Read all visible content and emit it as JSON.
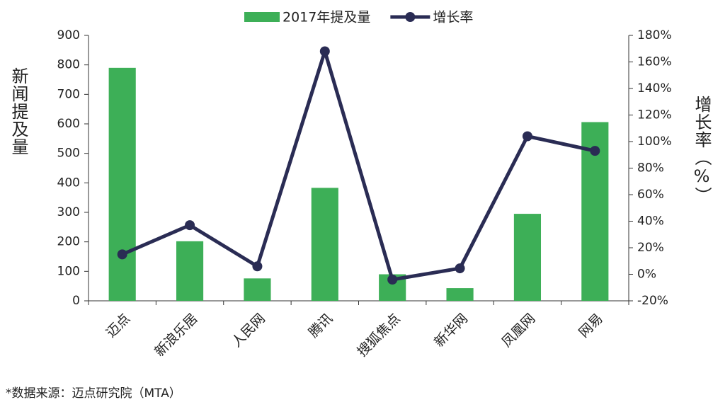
{
  "chart_data": {
    "type": "bar-line",
    "categories": [
      "迈点",
      "新浪乐居",
      "人民网",
      "腾讯",
      "搜狐焦点",
      "新华网",
      "凤凰网",
      "网易"
    ],
    "series": [
      {
        "name": "2017年提及量",
        "type": "bar",
        "color": "#3daf57",
        "values": [
          790,
          202,
          76,
          383,
          90,
          43,
          295,
          606
        ]
      },
      {
        "name": "增长率",
        "type": "line",
        "axis": "y2",
        "color": "#2a2c54",
        "values": [
          15,
          37,
          6,
          168,
          -4,
          4.5,
          104,
          93
        ]
      }
    ],
    "ylabel": "新闻提及量",
    "y2label": "增长率（%）",
    "ylim": [
      0,
      900
    ],
    "yticks": [
      0,
      100,
      200,
      300,
      400,
      500,
      600,
      700,
      800,
      900
    ],
    "y2lim": [
      -20,
      180
    ],
    "y2ticks": [
      {
        "value": -20,
        "label": "-20%"
      },
      {
        "value": 0,
        "label": "0%"
      },
      {
        "value": 20,
        "label": "20%"
      },
      {
        "value": 40,
        "label": "40%"
      },
      {
        "value": 60,
        "label": "60%"
      },
      {
        "value": 80,
        "label": "80%"
      },
      {
        "value": 100,
        "label": "100%"
      },
      {
        "value": 120,
        "label": "120%"
      },
      {
        "value": 140,
        "label": "140%"
      },
      {
        "value": 160,
        "label": "160%"
      },
      {
        "value": 180,
        "label": "180%"
      }
    ],
    "legend": "top",
    "note": "*数据来源：迈点研究院（MTA）"
  }
}
